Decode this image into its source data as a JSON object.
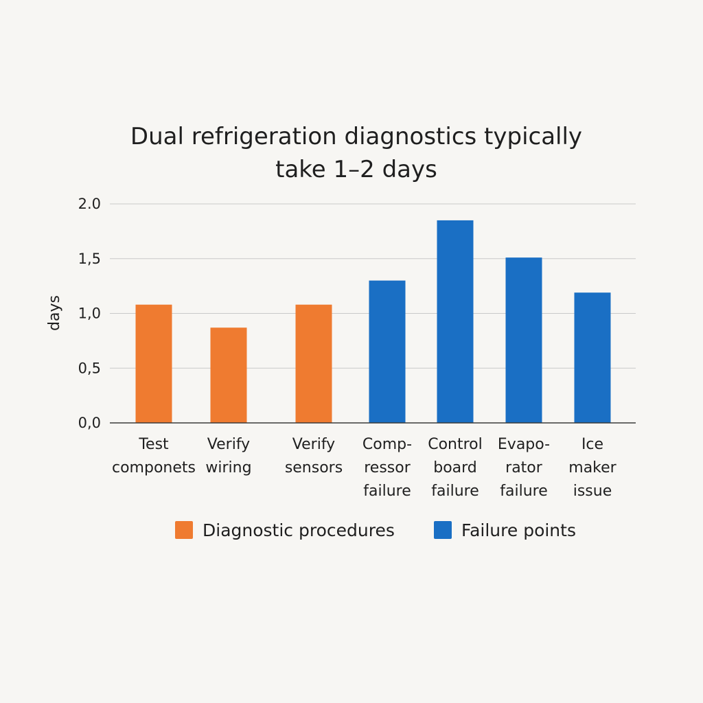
{
  "chart_data": {
    "type": "bar",
    "title": "Dual refrigeration diagnostics typically take 1–2 days",
    "title_lines": [
      "Dual refrigeration diagnostics typically",
      "take 1–2 days"
    ],
    "xlabel": "",
    "ylabel": "days",
    "ylim": [
      0,
      2.0
    ],
    "yticks": [
      0,
      0.5,
      1.0,
      1.5,
      2.0
    ],
    "ytick_labels": [
      "0,0",
      "0,5",
      "1,0",
      "1,5",
      "2.0"
    ],
    "grid": true,
    "legend_position": "bottom",
    "categories": [
      [
        "Test",
        "componets"
      ],
      [
        "Verify",
        "wiring"
      ],
      [
        "Verify",
        "sensors"
      ],
      [
        "Comp-",
        "ressor",
        "failure"
      ],
      [
        "Control",
        "board",
        "failure"
      ],
      [
        "Evapo-",
        "rator",
        "failure"
      ],
      [
        "Ice",
        "maker",
        "issue"
      ]
    ],
    "values": [
      1.08,
      0.87,
      1.08,
      1.3,
      1.85,
      1.51,
      1.19
    ],
    "groups": [
      "Diagnostic procedures",
      "Diagnostic procedures",
      "Diagnostic procedures",
      "Failure points",
      "Failure points",
      "Failure points",
      "Failure points"
    ],
    "series": [
      {
        "name": "Diagnostic procedures",
        "color": "#ef7b30"
      },
      {
        "name": "Failure points",
        "color": "#1a6fc4"
      }
    ]
  }
}
